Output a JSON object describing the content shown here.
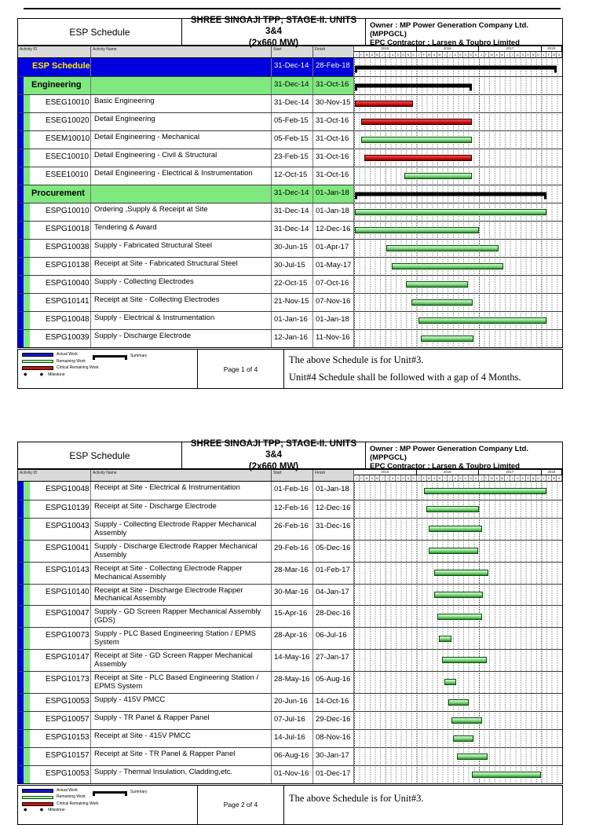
{
  "meta": {
    "report_title": "ESP Schedule",
    "project_title_line1": "SHREE SINGAJI TPP; STAGE-II. UNITS 3&4",
    "project_title_line2": "(2x660 MW)",
    "owner": "Owner : MP Power Generation Company Ltd. (MPPGCL)",
    "epc": "EPC Contractor : Larsen & Toubro Limited"
  },
  "columns": {
    "id": "Activity ID",
    "name": "Activity Name",
    "start": "Start",
    "finish": "Finish"
  },
  "timeline": {
    "domain_start": "28-Dec-14",
    "domain_end": "01-Apr-18",
    "total_months": 40,
    "month_letters": "JFMAMJJASOND",
    "years": [
      {
        "label": "2015",
        "months": 12
      },
      {
        "label": "2016",
        "months": 12
      },
      {
        "label": "2017",
        "months": 12
      },
      {
        "label": "2018",
        "months": 4
      }
    ]
  },
  "legend": {
    "actual": "Actual Work",
    "remaining": "Remaining Work",
    "critical": "Critical Remaining Work",
    "milestone": "Milestone",
    "summary": "Summary"
  },
  "colors": {
    "blue": "#0000DE",
    "green": "#7FE97F",
    "hdr": "#DADADA",
    "critical": "#CE1212",
    "remfill": "#7FD87F",
    "remedge": "#0B4D0B",
    "actual": "#1515CF",
    "summary": "#000000"
  },
  "pages": [
    {
      "page_label": "Page 1 of 4",
      "note_line1": "The above Schedule is for Unit#3.",
      "note_line2": "Unit#4 Schedule shall be followed with a gap of 4 Months.",
      "rows": [
        {
          "level": 0,
          "id": "",
          "name": "ESP Schedule",
          "start": "31-Dec-14",
          "finish": "28-Feb-18",
          "bar": "summary"
        },
        {
          "level": 1,
          "id": "",
          "name": "Engineering",
          "start": "31-Dec-14",
          "finish": "31-Oct-16",
          "bar": "summary"
        },
        {
          "level": 2,
          "id": "ESEG10010",
          "name": "Basic Engineering",
          "start": "31-Dec-14",
          "finish": "30-Nov-15",
          "bar": "critical"
        },
        {
          "level": 2,
          "id": "ESEG10020",
          "name": "Detail Engineering",
          "start": "05-Feb-15",
          "finish": "31-Oct-16",
          "bar": "critical"
        },
        {
          "level": 2,
          "id": "ESEM10010",
          "name": "Detail Engineering - Mechanical",
          "start": "05-Feb-15",
          "finish": "31-Oct-16",
          "bar": "remaining"
        },
        {
          "level": 2,
          "id": "ESEC10010",
          "name": "Detail Engineering - Civil & Structural",
          "start": "23-Feb-15",
          "finish": "31-Oct-16",
          "bar": "critical"
        },
        {
          "level": 2,
          "id": "ESEE10010",
          "name": "Detail Engineering - Electrical & Instrumentation",
          "start": "12-Oct-15",
          "finish": "31-Oct-16",
          "bar": "remaining"
        },
        {
          "level": 1,
          "id": "",
          "name": "Procurement",
          "start": "31-Dec-14",
          "finish": "01-Jan-18",
          "bar": "summary"
        },
        {
          "level": 2,
          "id": "ESPG10010",
          "name": "Ordering ,Supply & Receipt at Site",
          "start": "31-Dec-14",
          "finish": "01-Jan-18",
          "bar": "remaining"
        },
        {
          "level": 2,
          "id": "ESPG10018",
          "name": "Tendering & Award",
          "start": "31-Dec-14",
          "finish": "12-Dec-16",
          "bar": "remaining"
        },
        {
          "level": 2,
          "id": "ESPG10038",
          "name": "Supply - Fabricated Structural Steel",
          "start": "30-Jun-15",
          "finish": "01-Apr-17",
          "bar": "remaining"
        },
        {
          "level": 2,
          "id": "ESPG10138",
          "name": "Receipt at Site - Fabricated Structural Steel",
          "start": "30-Jul-15",
          "finish": "01-May-17",
          "bar": "remaining"
        },
        {
          "level": 2,
          "id": "ESPG10040",
          "name": "Supply - Collecting Electrodes",
          "start": "22-Oct-15",
          "finish": "07-Oct-16",
          "bar": "remaining"
        },
        {
          "level": 2,
          "id": "ESPG10141",
          "name": "Receipt at Site - Collecting Electrodes",
          "start": "21-Nov-15",
          "finish": "07-Nov-16",
          "bar": "remaining"
        },
        {
          "level": 2,
          "id": "ESPG10048",
          "name": "Supply - Electrical & Instrumentation",
          "start": "01-Jan-16",
          "finish": "01-Jan-18",
          "bar": "remaining"
        },
        {
          "level": 2,
          "id": "ESPG10039",
          "name": "Supply - Discharge Electrode",
          "start": "12-Jan-16",
          "finish": "11-Nov-16",
          "bar": "remaining"
        }
      ]
    },
    {
      "page_label": "Page 2 of 4",
      "note_line1": "The above Schedule is for Unit#3.",
      "note_line2": "",
      "rows": [
        {
          "level": 2,
          "id": "ESPG10048",
          "name": "Receipt at Site - Electrical & Instrumentation",
          "start": "01-Feb-16",
          "finish": "01-Jan-18",
          "bar": "remaining"
        },
        {
          "level": 2,
          "id": "ESPG10139",
          "name": "Receipt at Site - Discharge Electrode",
          "start": "12-Feb-16",
          "finish": "12-Dec-16",
          "bar": "remaining"
        },
        {
          "level": 2,
          "id": "ESPG10043",
          "name": "Supply - Collecting Electrode Rapper Mechanical Assembly",
          "start": "26-Feb-16",
          "finish": "31-Dec-16",
          "bar": "remaining"
        },
        {
          "level": 2,
          "id": "ESPG10041",
          "name": "Supply - Discharge Electrode Rapper Mechanical Assembly",
          "start": "29-Feb-16",
          "finish": "05-Dec-16",
          "bar": "remaining"
        },
        {
          "level": 2,
          "id": "ESPG10143",
          "name": "Receipt at Site - Collecting Electrode Rapper Mechanical Assembly",
          "start": "28-Mar-16",
          "finish": "01-Feb-17",
          "bar": "remaining"
        },
        {
          "level": 2,
          "id": "ESPG10140",
          "name": "Receipt at Site - Discharge Electrode Rapper Mechanical Assembly",
          "start": "30-Mar-16",
          "finish": "04-Jan-17",
          "bar": "remaining"
        },
        {
          "level": 2,
          "id": "ESPG10047",
          "name": "Supply - GD Screen Rapper Mechanical Assembly (GDS)",
          "start": "15-Apr-16",
          "finish": "28-Dec-16",
          "bar": "remaining"
        },
        {
          "level": 2,
          "id": "ESPG10073",
          "name": "Supply - PLC Based Engineering Station / EPMS System",
          "start": "28-Apr-16",
          "finish": "06-Jul-16",
          "bar": "remaining"
        },
        {
          "level": 2,
          "id": "ESPG10147",
          "name": "Receipt at Site - GD Screen Rapper Mechanical Assembly",
          "start": "14-May-16",
          "finish": "27-Jan-17",
          "bar": "remaining"
        },
        {
          "level": 2,
          "id": "ESPG10173",
          "name": "Receipt at Site - PLC Based Engineering Station / EPMS System",
          "start": "28-May-16",
          "finish": "05-Aug-16",
          "bar": "remaining"
        },
        {
          "level": 2,
          "id": "ESPG10053",
          "name": "Supply - 415V PMCC",
          "start": "20-Jun-16",
          "finish": "14-Oct-16",
          "bar": "remaining"
        },
        {
          "level": 2,
          "id": "ESPG10057",
          "name": "Supply - TR Panel & Rapper Panel",
          "start": "07-Jul-16",
          "finish": "29-Dec-16",
          "bar": "remaining"
        },
        {
          "level": 2,
          "id": "ESPG10153",
          "name": "Receipt at Site - 415V PMCC",
          "start": "14-Jul-16",
          "finish": "08-Nov-16",
          "bar": "remaining"
        },
        {
          "level": 2,
          "id": "ESPG10157",
          "name": "Receipt at Site - TR Panel & Rapper Panel",
          "start": "06-Aug-16",
          "finish": "30-Jan-17",
          "bar": "remaining"
        },
        {
          "level": 2,
          "id": "ESPG10053",
          "name": "Supply - Thermal Insulation, Cladding,etc.",
          "start": "01-Nov-16",
          "finish": "01-Dec-17",
          "bar": "remaining"
        }
      ]
    }
  ]
}
